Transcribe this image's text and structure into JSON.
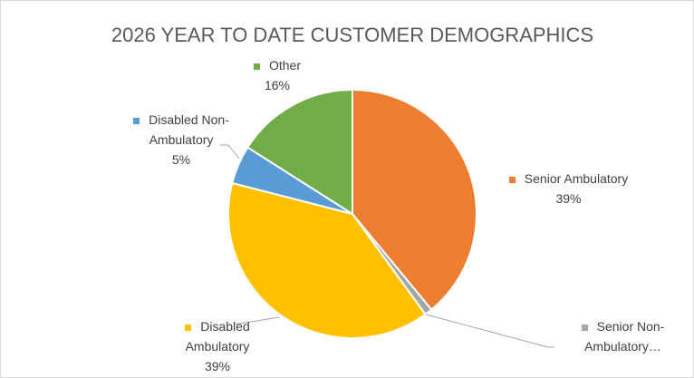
{
  "chart_data": {
    "type": "pie",
    "title": "2026 YEAR TO DATE CUSTOMER DEMOGRAPHICS",
    "categories": [
      "Senior Ambulatory",
      "Senior Non-Ambulatory…",
      "Disabled Ambulatory",
      "Disabled Non-Ambulatory",
      "Other"
    ],
    "values": [
      39,
      1,
      39,
      5,
      16
    ],
    "value_labels": [
      "39%",
      null,
      "39%",
      "5%",
      "16%"
    ],
    "colors": [
      "#ed7d31",
      "#a5a5a5",
      "#ffc000",
      "#5b9bd5",
      "#70ad47"
    ]
  }
}
